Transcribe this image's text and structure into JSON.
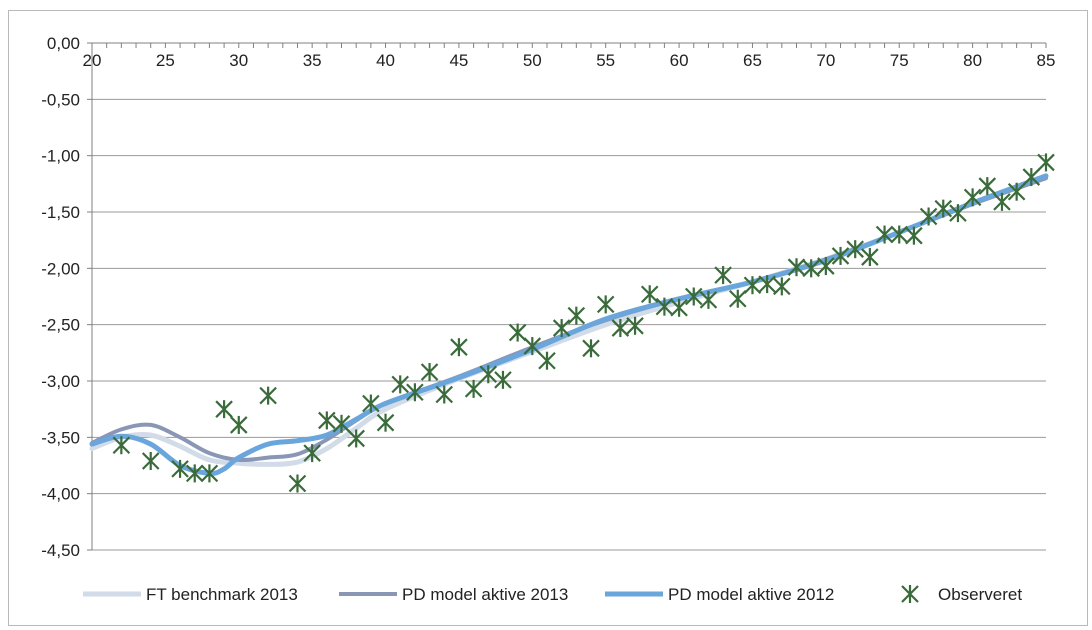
{
  "chart_data": {
    "type": "line",
    "title": "",
    "xlabel": "",
    "ylabel": "",
    "xlim": [
      20,
      85
    ],
    "ylim": [
      -4.5,
      0
    ],
    "x_ticks": [
      20,
      25,
      30,
      35,
      40,
      45,
      50,
      55,
      60,
      65,
      70,
      75,
      80,
      85
    ],
    "y_ticks": [
      0,
      -0.5,
      -1,
      -1.5,
      -2,
      -2.5,
      -3,
      -3.5,
      -4,
      -4.5
    ],
    "y_tick_labels": [
      "0,00",
      "-0,50",
      "-1,00",
      "-1,50",
      "-2,00",
      "-2,50",
      "-3,00",
      "-3,50",
      "-4,00",
      "-4,50"
    ],
    "x_axis_position": "top",
    "grid": "horizontal",
    "legend_position": "bottom",
    "series": [
      {
        "name": "FT benchmark 2013",
        "kind": "line",
        "color": "#d2dbe8",
        "x": [
          20,
          22,
          24,
          26,
          28,
          30,
          32,
          34,
          36,
          38,
          40,
          45,
          50,
          55,
          60,
          65,
          70,
          75,
          80,
          85
        ],
        "y": [
          -3.6,
          -3.5,
          -3.48,
          -3.58,
          -3.7,
          -3.73,
          -3.74,
          -3.72,
          -3.6,
          -3.42,
          -3.25,
          -2.98,
          -2.74,
          -2.5,
          -2.3,
          -2.12,
          -1.92,
          -1.68,
          -1.42,
          -1.18
        ]
      },
      {
        "name": "PD model aktive 2013",
        "kind": "line",
        "color": "#8a96b6",
        "x": [
          20,
          22,
          24,
          26,
          28,
          30,
          32,
          34,
          36,
          38,
          40,
          45,
          50,
          55,
          60,
          65,
          70,
          75,
          80,
          85
        ],
        "y": [
          -3.55,
          -3.43,
          -3.39,
          -3.5,
          -3.64,
          -3.7,
          -3.68,
          -3.65,
          -3.52,
          -3.35,
          -3.2,
          -2.96,
          -2.7,
          -2.46,
          -2.27,
          -2.12,
          -1.92,
          -1.68,
          -1.43,
          -1.2
        ]
      },
      {
        "name": "PD model aktive 2012",
        "kind": "line",
        "color": "#6aa6dc",
        "x": [
          20,
          22,
          24,
          26,
          28,
          29,
          30,
          32,
          34,
          36,
          38,
          40,
          45,
          50,
          55,
          60,
          65,
          70,
          75,
          80,
          85
        ],
        "y": [
          -3.56,
          -3.49,
          -3.56,
          -3.75,
          -3.82,
          -3.78,
          -3.68,
          -3.56,
          -3.53,
          -3.48,
          -3.34,
          -3.2,
          -2.97,
          -2.72,
          -2.45,
          -2.27,
          -2.12,
          -1.93,
          -1.68,
          -1.42,
          -1.18
        ]
      },
      {
        "name": "Observeret",
        "kind": "scatter",
        "color": "#3a6b3a",
        "x": [
          22,
          24,
          26,
          27,
          28,
          29,
          30,
          32,
          34,
          35,
          36,
          37,
          38,
          39,
          40,
          41,
          42,
          43,
          44,
          45,
          46,
          47,
          48,
          49,
          50,
          51,
          52,
          53,
          54,
          55,
          56,
          57,
          58,
          59,
          60,
          61,
          62,
          63,
          64,
          65,
          66,
          67,
          68,
          69,
          70,
          71,
          72,
          73,
          74,
          75,
          76,
          77,
          78,
          79,
          80,
          81,
          82,
          83,
          84,
          85
        ],
        "y": [
          -3.57,
          -3.71,
          -3.78,
          -3.82,
          -3.82,
          -3.25,
          -3.39,
          -3.13,
          -3.91,
          -3.64,
          -3.35,
          -3.38,
          -3.51,
          -3.2,
          -3.37,
          -3.03,
          -3.1,
          -2.92,
          -3.12,
          -2.7,
          -3.07,
          -2.94,
          -2.99,
          -2.57,
          -2.69,
          -2.82,
          -2.53,
          -2.42,
          -2.71,
          -2.32,
          -2.53,
          -2.51,
          -2.23,
          -2.34,
          -2.35,
          -2.25,
          -2.28,
          -2.06,
          -2.27,
          -2.15,
          -2.14,
          -2.16,
          -1.99,
          -2.0,
          -1.98,
          -1.89,
          -1.83,
          -1.9,
          -1.7,
          -1.7,
          -1.71,
          -1.54,
          -1.47,
          -1.51,
          -1.37,
          -1.27,
          -1.41,
          -1.32,
          -1.19,
          -1.06
        ]
      }
    ]
  }
}
